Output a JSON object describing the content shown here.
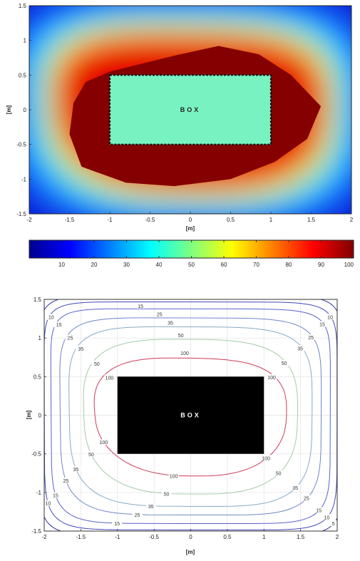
{
  "chart_data": [
    {
      "type": "heatmap",
      "xlabel": "[m]",
      "ylabel": "[m]",
      "xlim": [
        -2,
        2
      ],
      "ylim": [
        -1.5,
        1.5
      ],
      "x_ticks": [
        "-2",
        "-1.5",
        "-1",
        "-0.5",
        "0",
        "0.5",
        "1",
        "1.5",
        "2"
      ],
      "y_ticks": [
        "-1.5",
        "-1",
        "-0.5",
        "0",
        "0.5",
        "1",
        "1.5"
      ],
      "box": {
        "label": "BOX",
        "x": [
          -1,
          1
        ],
        "y": [
          -0.5,
          0.5
        ]
      },
      "colorbar": {
        "range": [
          0,
          100
        ],
        "ticks": [
          "10",
          "20",
          "30",
          "40",
          "50",
          "60",
          "70",
          "80",
          "90",
          "100"
        ]
      },
      "grid": false
    },
    {
      "type": "contour",
      "xlabel": "[m]",
      "ylabel": "[m]",
      "xlim": [
        -2,
        2
      ],
      "ylim": [
        -1.5,
        1.5
      ],
      "x_ticks": [
        "-2",
        "-1.5",
        "-1",
        "-0.5",
        "0",
        "0.5",
        "1",
        "1.5",
        "2"
      ],
      "y_ticks": [
        "-1.5",
        "-1",
        "-0.5",
        "0",
        "0.5",
        "1",
        "1.5"
      ],
      "box": {
        "label": "BOX",
        "x": [
          -1,
          1
        ],
        "y": [
          -0.5,
          0.5
        ]
      },
      "grid": true,
      "levels": [
        {
          "value": 5,
          "label": "5",
          "color": "#2b2f9a"
        },
        {
          "value": 10,
          "label": "10",
          "color": "#4048b8"
        },
        {
          "value": 15,
          "label": "15",
          "color": "#5661c6"
        },
        {
          "value": 25,
          "label": "25",
          "color": "#6f86c8"
        },
        {
          "value": 35,
          "label": "35",
          "color": "#86aac8"
        },
        {
          "value": 50,
          "label": "50",
          "color": "#a3cba6"
        },
        {
          "value": 100,
          "label": "100",
          "color": "#cc3c57"
        }
      ]
    }
  ]
}
